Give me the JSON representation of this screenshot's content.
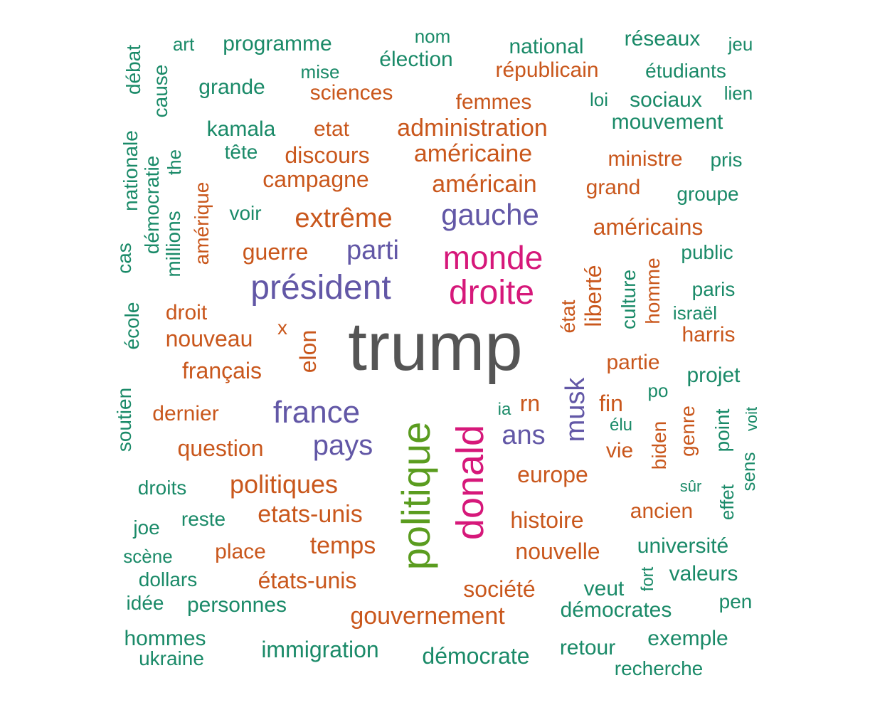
{
  "colors": {
    "gray": "#555555",
    "magenta": "#d6187a",
    "green": "#5a9c1f",
    "purple": "#6257a6",
    "orange": "#c9571c",
    "teal": "#1a8a68"
  },
  "words": [
    {
      "t": "trump",
      "c": "gray"
    },
    {
      "t": "monde",
      "c": "magenta"
    },
    {
      "t": "droite",
      "c": "magenta"
    },
    {
      "t": "donald",
      "c": "magenta"
    },
    {
      "t": "politique",
      "c": "green"
    },
    {
      "t": "gauche",
      "c": "purple"
    },
    {
      "t": "président",
      "c": "purple"
    },
    {
      "t": "parti",
      "c": "purple"
    },
    {
      "t": "france",
      "c": "purple"
    },
    {
      "t": "pays",
      "c": "purple"
    },
    {
      "t": "ans",
      "c": "purple"
    },
    {
      "t": "musk",
      "c": "purple"
    },
    {
      "t": "art",
      "c": "teal"
    },
    {
      "t": "programme",
      "c": "teal"
    },
    {
      "t": "nom",
      "c": "teal"
    },
    {
      "t": "élection",
      "c": "teal"
    },
    {
      "t": "national",
      "c": "teal"
    },
    {
      "t": "réseaux",
      "c": "teal"
    },
    {
      "t": "jeu",
      "c": "teal"
    },
    {
      "t": "mise",
      "c": "teal"
    },
    {
      "t": "républicain",
      "c": "orange"
    },
    {
      "t": "étudiants",
      "c": "teal"
    },
    {
      "t": "débat",
      "c": "teal"
    },
    {
      "t": "cause",
      "c": "teal"
    },
    {
      "t": "grande",
      "c": "teal"
    },
    {
      "t": "sciences",
      "c": "orange"
    },
    {
      "t": "femmes",
      "c": "orange"
    },
    {
      "t": "loi",
      "c": "teal"
    },
    {
      "t": "sociaux",
      "c": "teal"
    },
    {
      "t": "lien",
      "c": "teal"
    },
    {
      "t": "mouvement",
      "c": "teal"
    },
    {
      "t": "kamala",
      "c": "teal"
    },
    {
      "t": "etat",
      "c": "orange"
    },
    {
      "t": "administration",
      "c": "orange"
    },
    {
      "t": "nationale",
      "c": "teal"
    },
    {
      "t": "démocratie",
      "c": "teal"
    },
    {
      "t": "the",
      "c": "teal"
    },
    {
      "t": "tête",
      "c": "teal"
    },
    {
      "t": "discours",
      "c": "orange"
    },
    {
      "t": "américaine",
      "c": "orange"
    },
    {
      "t": "ministre",
      "c": "orange"
    },
    {
      "t": "pris",
      "c": "teal"
    },
    {
      "t": "campagne",
      "c": "orange"
    },
    {
      "t": "américain",
      "c": "orange"
    },
    {
      "t": "grand",
      "c": "orange"
    },
    {
      "t": "groupe",
      "c": "teal"
    },
    {
      "t": "cas",
      "c": "teal"
    },
    {
      "t": "millions",
      "c": "teal"
    },
    {
      "t": "amérique",
      "c": "orange"
    },
    {
      "t": "voir",
      "c": "teal"
    },
    {
      "t": "extrême",
      "c": "orange"
    },
    {
      "t": "américains",
      "c": "orange"
    },
    {
      "t": "guerre",
      "c": "orange"
    },
    {
      "t": "public",
      "c": "teal"
    },
    {
      "t": "homme",
      "c": "orange"
    },
    {
      "t": "culture",
      "c": "teal"
    },
    {
      "t": "liberté",
      "c": "orange"
    },
    {
      "t": "état",
      "c": "orange"
    },
    {
      "t": "paris",
      "c": "teal"
    },
    {
      "t": "israël",
      "c": "teal"
    },
    {
      "t": "harris",
      "c": "orange"
    },
    {
      "t": "école",
      "c": "teal"
    },
    {
      "t": "droit",
      "c": "orange"
    },
    {
      "t": "nouveau",
      "c": "orange"
    },
    {
      "t": "x",
      "c": "orange"
    },
    {
      "t": "elon",
      "c": "orange"
    },
    {
      "t": "français",
      "c": "orange"
    },
    {
      "t": "partie",
      "c": "orange"
    },
    {
      "t": "projet",
      "c": "teal"
    },
    {
      "t": "po",
      "c": "teal"
    },
    {
      "t": "soutien",
      "c": "teal"
    },
    {
      "t": "dernier",
      "c": "orange"
    },
    {
      "t": "ia",
      "c": "teal"
    },
    {
      "t": "rn",
      "c": "orange"
    },
    {
      "t": "fin",
      "c": "orange"
    },
    {
      "t": "élu",
      "c": "teal"
    },
    {
      "t": "biden",
      "c": "orange"
    },
    {
      "t": "genre",
      "c": "orange"
    },
    {
      "t": "point",
      "c": "teal"
    },
    {
      "t": "voit",
      "c": "teal"
    },
    {
      "t": "sens",
      "c": "teal"
    },
    {
      "t": "question",
      "c": "orange"
    },
    {
      "t": "vie",
      "c": "orange"
    },
    {
      "t": "europe",
      "c": "orange"
    },
    {
      "t": "droits",
      "c": "teal"
    },
    {
      "t": "politiques",
      "c": "orange"
    },
    {
      "t": "sûr",
      "c": "teal"
    },
    {
      "t": "effet",
      "c": "teal"
    },
    {
      "t": "reste",
      "c": "teal"
    },
    {
      "t": "etats-unis",
      "c": "orange"
    },
    {
      "t": "histoire",
      "c": "orange"
    },
    {
      "t": "ancien",
      "c": "orange"
    },
    {
      "t": "joe",
      "c": "teal"
    },
    {
      "t": "scène",
      "c": "teal"
    },
    {
      "t": "place",
      "c": "orange"
    },
    {
      "t": "temps",
      "c": "orange"
    },
    {
      "t": "nouvelle",
      "c": "orange"
    },
    {
      "t": "université",
      "c": "teal"
    },
    {
      "t": "dollars",
      "c": "teal"
    },
    {
      "t": "états-unis",
      "c": "orange"
    },
    {
      "t": "fort",
      "c": "teal"
    },
    {
      "t": "valeurs",
      "c": "teal"
    },
    {
      "t": "société",
      "c": "orange"
    },
    {
      "t": "veut",
      "c": "teal"
    },
    {
      "t": "idée",
      "c": "teal"
    },
    {
      "t": "personnes",
      "c": "teal"
    },
    {
      "t": "démocrates",
      "c": "teal"
    },
    {
      "t": "pen",
      "c": "teal"
    },
    {
      "t": "gouvernement",
      "c": "orange"
    },
    {
      "t": "hommes",
      "c": "teal"
    },
    {
      "t": "ukraine",
      "c": "teal"
    },
    {
      "t": "immigration",
      "c": "teal"
    },
    {
      "t": "démocrate",
      "c": "teal"
    },
    {
      "t": "retour",
      "c": "teal"
    },
    {
      "t": "exemple",
      "c": "teal"
    },
    {
      "t": "recherche",
      "c": "teal"
    }
  ]
}
